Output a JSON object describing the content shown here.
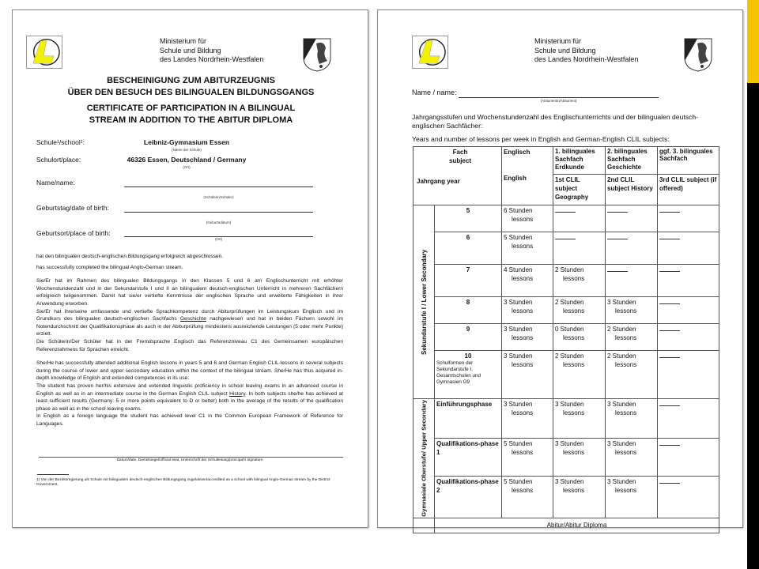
{
  "ministry": [
    "Ministerium für",
    "Schule und Bildung",
    "des Landes Nordrhein-Westfalen"
  ],
  "colors": {
    "accent_yellow": "#f5c400",
    "logo_yellow": "#f2f000"
  },
  "page1": {
    "title_de": [
      "BESCHEINIGUNG ZUM ABITURZEUGNIS",
      "ÜBER DEN BESUCH DES BILINGUALEN BILDUNGSGANGS"
    ],
    "title_en": [
      "CERTIFICATE OF PARTICIPATION IN A BILINGUAL",
      "STREAM IN ADDITION TO THE ABITUR DIPLOMA"
    ],
    "fields": [
      {
        "label": "Schule¹/school¹:",
        "value": "Leibniz-Gymnasium Essen",
        "hint": "(Name der Schule)"
      },
      {
        "label": "Schulort/place:",
        "value": "46326 Essen, Deutschland / Germany",
        "hint": "(Ort)"
      },
      {
        "label": "Name/name:",
        "value": "",
        "hint": "(Schülerin/Schüler)"
      },
      {
        "label": "Geburtstag/date of birth:",
        "value": "",
        "hint": "(Geburtsdatum)"
      },
      {
        "label": "Geburtsort/place of birth:",
        "value": "",
        "hint": "(Ort)"
      }
    ],
    "completed_de": "hat den bilingualen deutsch-englischen Bildungsgang erfolgreich abgeschlossen.",
    "completed_en": "has successfully completed the bilingual Anglo-German stream.",
    "para_de": [
      "Sie/Er hat im Rahmen des bilingualen Bildungsgangs in den Klassen 5 und 6 am Englischunterricht mit erhöhter Wochenstundenzahl und in der Sekundarstufe I und II an bilingualem deutsch-englischen Unterricht in mehreren Sachfächern erfolgreich teilgenommen. Damit hat sie/er vertiefte Kenntnisse der englischen Sprache und erweiterte Fähigkeiten in ihrer Anwendung erworben.",
      "Sie/Er hat ihre/seine umfassende und vertiefte Sprachkompetenz durch Abiturprüfungen im Leistungskurs Englisch und im Grundkurs des bilingualen deutsch-englischen Sachfachs",
      "Geschichte",
      "nachgewiesen und hat in beiden Fächern sowohl im Notendurchschnitt der Qualifikationsphase als auch in der Abiturprüfung mindestens ausreichende Leistungen (5 oder mehr Punkte) erzielt.",
      "Die Schülerin/Der Schüler hat in der Fremdsprache Englisch das Referenzniveau C1 des Gemeinsamen europäischen Referenzrahmens für Sprachen erreicht."
    ],
    "para_en": [
      "She/He has successfully attended additional English lessons in years 5 and 6 and German English CLIL-lessons in several subjects during the course of lower and upper secondary education within the context of the bilingual stream. She/He has thus acquired in-depth knowledge of English and extended competences in its use.",
      "The student has proven her/his extensive and extended linguistic proficiency in school leaving exams in an advanced course in English as well as in an intermediate course in the German English CLIL subject",
      "History",
      ". In both subjects she/he has achieved at least sufficient results (Germany: 5 or more points equivalent to D or better) both in the average of the results of the qualification phase as well as in the school leaving exams.",
      "In English as a foreign language the student has achieved level C1 in the Common European Framework of Reference for Languages."
    ],
    "signature_caption": "Datum/date, Dienstsiegel/official seal, Unterschrift der Schulleitung/principal's signature",
    "footnote": "1) Von der Bezirksregierung als Schule mit bilingualem deutsch-englischen Bildungsgang zugelassen/accredited as a school with bilingual Anglo-German stream by the District Government."
  },
  "page2": {
    "name_label": "Name / name:",
    "name_hint": "(Abiturientin/Abiturient)",
    "intro_de": "Jahrgangsstufen und Wochenstundenzahl des Englischunterrichts und der bilingualen deutsch-englischen Sachfächer:",
    "intro_en": "Years and number of lessons per week in English and German-English CLIL subjects:",
    "table": {
      "h_fach": "Fach subject",
      "h_jahrgang": "Jahrgang year",
      "h_englisch": "Englisch",
      "h_english": "English",
      "h_c1_de": "1. bilinguales Sachfach Erdkunde",
      "h_c1_en": "1st CLIL subject Geography",
      "h_c2_de": "2. bilinguales Sachfach Geschichte",
      "h_c2_en": "2nd CLIL subject History",
      "h_c3_de": "ggf. 3. bilinguales Sachfach",
      "h_c3_en": "3rd CLIL subject (if offered)",
      "group_lower": "Sekundarstufe I / Lower Secondary",
      "group_upper": "Gymnasiale Oberstufe/ Upper Secondary",
      "unit_en": "lessons",
      "rows": [
        {
          "year": "5",
          "note": "",
          "eng": "6 Stunden",
          "c1": "",
          "c2": "",
          "c3": ""
        },
        {
          "year": "6",
          "note": "",
          "eng": "5 Stunden",
          "c1": "",
          "c2": "",
          "c3": ""
        },
        {
          "year": "7",
          "note": "",
          "eng": "4 Stunden",
          "c1": "2 Stunden",
          "c2": "",
          "c3": ""
        },
        {
          "year": "8",
          "note": "",
          "eng": "3 Stunden",
          "c1": "2 Stunden",
          "c2": "3 Stunden",
          "c3": ""
        },
        {
          "year": "9",
          "note": "",
          "eng": "3 Stunden",
          "c1": "0 Stunden",
          "c2": "2 Stunden",
          "c3": ""
        },
        {
          "year": "10",
          "note": "Schulformen der Sekundarstufe I, Gesamtschulen und Gymnasien G9",
          "eng": "3 Stunden",
          "c1": "2 Stunden",
          "c2": "2 Stunden",
          "c3": ""
        },
        {
          "year": "Einführungsphase",
          "note": "",
          "eng": "3 Stunden",
          "c1": "3 Stunden",
          "c2": "3 Stunden",
          "c3": ""
        },
        {
          "year": "Qualifikations-phase 1",
          "note": "",
          "eng": "5 Stunden",
          "c1": "3 Stunden",
          "c2": "3 Stunden",
          "c3": ""
        },
        {
          "year": "Qualifikations-phase 2",
          "note": "",
          "eng": "5 Stunden",
          "c1": "3 Stunden",
          "c2": "3 Stunden",
          "c3": ""
        }
      ],
      "footer": "Abitur/Abitur Diploma"
    }
  }
}
